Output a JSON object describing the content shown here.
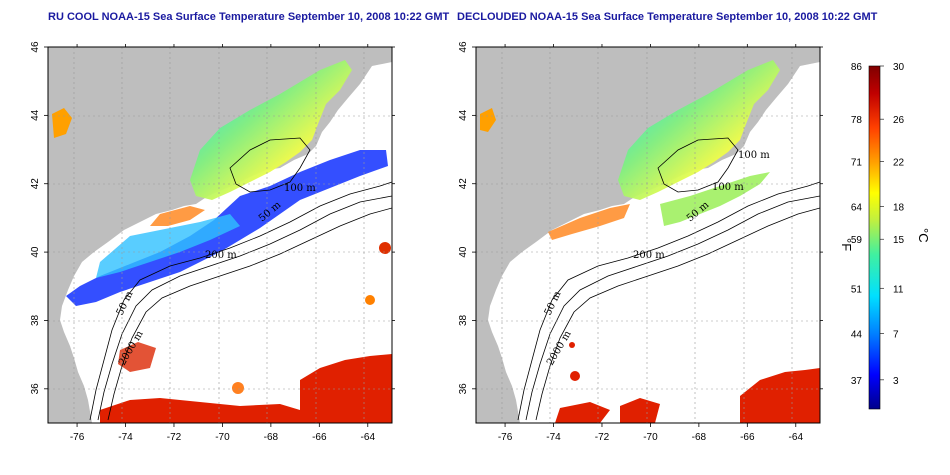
{
  "chart_data": [
    {
      "type": "heatmap",
      "title": "RU COOL NOAA-15 Sea Surface Temperature September 10, 2008 10:22 GMT",
      "xlabel": "",
      "ylabel": "",
      "xlim": [
        -77.2,
        -63.0
      ],
      "ylim": [
        35.0,
        46.0
      ],
      "x_ticks": [
        -76,
        -74,
        -72,
        -70,
        -68,
        -66,
        -64
      ],
      "y_ticks": [
        36,
        38,
        40,
        42,
        44,
        46
      ],
      "grid": true,
      "contour_labels": [
        "100 m",
        "50 m",
        "200 m",
        "50 m",
        "2000 m"
      ]
    },
    {
      "type": "heatmap",
      "title": "DECLOUDED NOAA-15 Sea Surface Temperature September 10, 2008 10:22 GMT",
      "xlabel": "",
      "ylabel": "",
      "xlim": [
        -77.2,
        -63.0
      ],
      "ylim": [
        35.0,
        46.0
      ],
      "x_ticks": [
        -76,
        -74,
        -72,
        -70,
        -68,
        -66,
        -64
      ],
      "y_ticks": [
        36,
        38,
        40,
        42,
        44,
        46
      ],
      "grid": true,
      "contour_labels": [
        "100 m",
        "100 m",
        "50 m",
        "200 m",
        "50 m",
        "2000 m"
      ]
    }
  ],
  "colorbar": {
    "fahrenheit_label": "°F",
    "celsius_label": "°C",
    "fahrenheit_ticks": [
      "86",
      "78",
      "71",
      "64",
      "59",
      "51",
      "44",
      "37"
    ],
    "celsius_ticks": [
      "30",
      "26",
      "22",
      "18",
      "15",
      "11",
      "7",
      "3"
    ],
    "range_celsius": [
      0,
      30
    ],
    "colors": [
      "#00008b",
      "#0000ff",
      "#0080ff",
      "#00e0ff",
      "#40f0a0",
      "#c0f040",
      "#ffff00",
      "#ffa000",
      "#ff4000",
      "#c00000",
      "#800000"
    ]
  },
  "land_color": "#bebebe",
  "ocean_color": "#ffffff"
}
